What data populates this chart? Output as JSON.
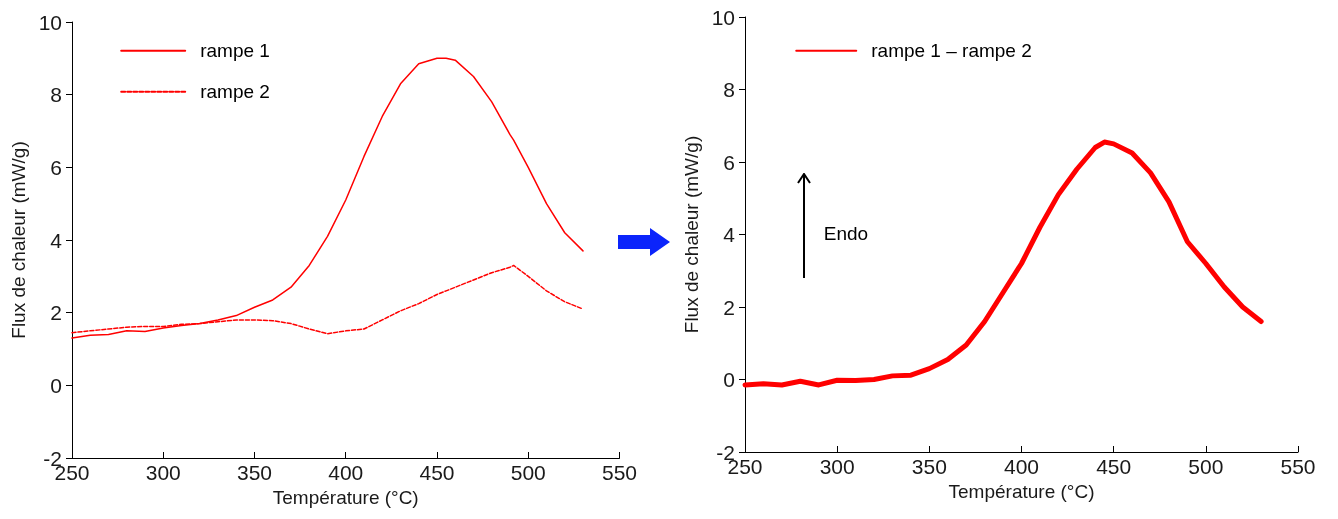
{
  "chart_data": [
    {
      "type": "line",
      "xlabel": "Température (°C)",
      "ylabel": "Flux de chaleur (mW/g)",
      "x": [
        250,
        260,
        270,
        280,
        290,
        300,
        310,
        320,
        330,
        340,
        350,
        360,
        370,
        380,
        390,
        400,
        410,
        420,
        430,
        440,
        450,
        455,
        460,
        470,
        480,
        490,
        492,
        500,
        510,
        520,
        530
      ],
      "series": [
        {
          "name": "rampe 1",
          "color": "#ff0000",
          "line_style": "solid",
          "values": [
            1.3,
            1.38,
            1.4,
            1.5,
            1.48,
            1.58,
            1.65,
            1.7,
            1.8,
            1.92,
            2.15,
            2.35,
            2.7,
            3.3,
            4.1,
            5.1,
            6.3,
            7.4,
            8.3,
            8.85,
            9.0,
            9.0,
            8.95,
            8.5,
            7.8,
            6.9,
            6.75,
            6.0,
            5.0,
            4.2,
            3.7
          ]
        },
        {
          "name": "rampe 2",
          "color": "#ff0000",
          "line_style": "dashed",
          "values": [
            1.45,
            1.5,
            1.55,
            1.6,
            1.62,
            1.62,
            1.68,
            1.7,
            1.75,
            1.8,
            1.8,
            1.78,
            1.7,
            1.55,
            1.42,
            1.5,
            1.55,
            1.8,
            2.05,
            2.25,
            2.5,
            2.6,
            2.7,
            2.9,
            3.1,
            3.25,
            3.3,
            3.0,
            2.6,
            2.3,
            2.1
          ]
        }
      ],
      "xlim": [
        250,
        550
      ],
      "xticks": [
        250,
        300,
        350,
        400,
        450,
        500,
        550
      ],
      "ylim": [
        -2,
        10
      ],
      "yticks": [
        -2,
        0,
        2,
        4,
        6,
        8,
        10
      ],
      "grid": false,
      "legend": "top left",
      "marker": "none"
    },
    {
      "type": "line",
      "xlabel": "Température (°C)",
      "ylabel": "Flux de chaleur (mW/g)",
      "x": [
        250,
        260,
        270,
        280,
        290,
        300,
        310,
        320,
        330,
        340,
        350,
        360,
        370,
        380,
        390,
        400,
        410,
        420,
        430,
        440,
        445,
        450,
        460,
        470,
        480,
        490,
        500,
        510,
        520,
        530
      ],
      "series": [
        {
          "name": "rampe 1 – rampe 2",
          "color": "#ff0000",
          "line_style": "solid",
          "values": [
            -0.15,
            -0.12,
            -0.15,
            -0.05,
            -0.15,
            -0.02,
            -0.03,
            0.0,
            0.1,
            0.12,
            0.3,
            0.55,
            0.95,
            1.6,
            2.4,
            3.2,
            4.2,
            5.1,
            5.8,
            6.4,
            6.55,
            6.5,
            6.25,
            5.7,
            4.9,
            3.8,
            3.2,
            2.55,
            2.0,
            1.6
          ]
        }
      ],
      "xlim": [
        250,
        550
      ],
      "xticks": [
        250,
        300,
        350,
        400,
        450,
        500,
        550
      ],
      "ylim": [
        -2,
        10
      ],
      "yticks": [
        -2,
        0,
        2,
        4,
        6,
        8,
        10
      ],
      "annotations": [
        "Endo"
      ],
      "grid": false,
      "legend": "top left",
      "marker": "none"
    }
  ]
}
